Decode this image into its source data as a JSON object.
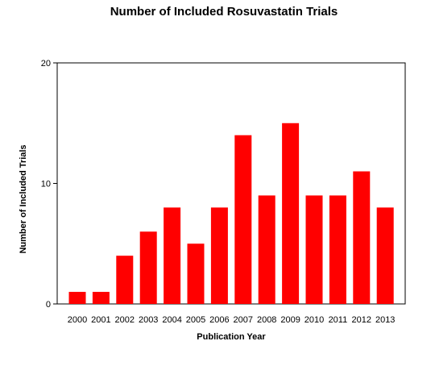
{
  "chart_data": {
    "type": "bar",
    "title": "Number of Included Rosuvastatin Trials",
    "xlabel": "Publication Year",
    "ylabel": "Number of Included Trials",
    "categories": [
      "2000",
      "2001",
      "2002",
      "2003",
      "2004",
      "2005",
      "2006",
      "2007",
      "2008",
      "2009",
      "2010",
      "2011",
      "2012",
      "2013"
    ],
    "values": [
      1,
      1,
      4,
      6,
      8,
      5,
      8,
      14,
      9,
      15,
      9,
      9,
      11,
      8
    ],
    "ylim": [
      0,
      20
    ],
    "yticks": [
      0,
      10,
      20
    ],
    "grid": false,
    "bar_color": "#ff0000"
  }
}
